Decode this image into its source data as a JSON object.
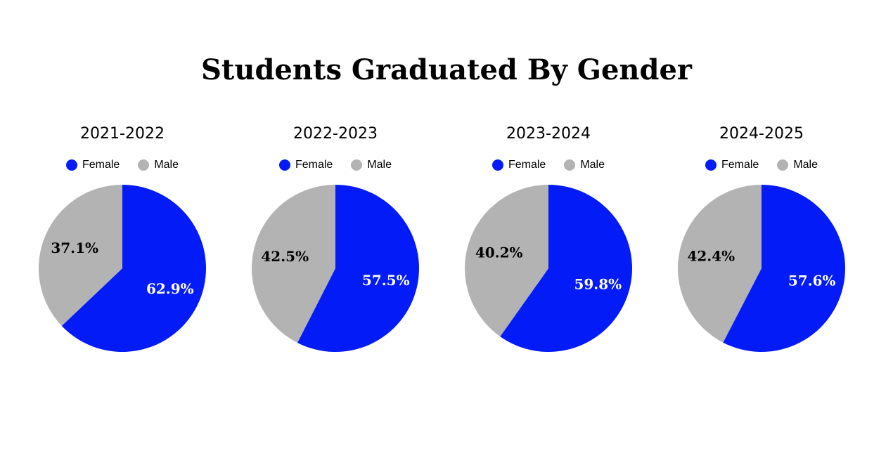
{
  "page": {
    "title": "Students Graduated By Gender"
  },
  "colors": {
    "female": "#031cf7",
    "male": "#b3b3b3",
    "female_label": "#ffffff",
    "male_label": "#000000"
  },
  "chart_data": [
    {
      "type": "pie",
      "title": "2021-2022",
      "legend": [
        "Female",
        "Male"
      ],
      "slices": [
        {
          "name": "Female",
          "value": 62.9,
          "label": "62.9%"
        },
        {
          "name": "Male",
          "value": 37.1,
          "label": "37.1%"
        }
      ]
    },
    {
      "type": "pie",
      "title": "2022-2023",
      "legend": [
        "Female",
        "Male"
      ],
      "slices": [
        {
          "name": "Female",
          "value": 57.5,
          "label": "57.5%"
        },
        {
          "name": "Male",
          "value": 42.5,
          "label": "42.5%"
        }
      ]
    },
    {
      "type": "pie",
      "title": "2023-2024",
      "legend": [
        "Female",
        "Male"
      ],
      "slices": [
        {
          "name": "Female",
          "value": 59.8,
          "label": "59.8%"
        },
        {
          "name": "Male",
          "value": 40.2,
          "label": "40.2%"
        }
      ]
    },
    {
      "type": "pie",
      "title": "2024-2025",
      "legend": [
        "Female",
        "Male"
      ],
      "slices": [
        {
          "name": "Female",
          "value": 57.6,
          "label": "57.6%"
        },
        {
          "name": "Male",
          "value": 42.4,
          "label": "42.4%"
        }
      ]
    }
  ]
}
